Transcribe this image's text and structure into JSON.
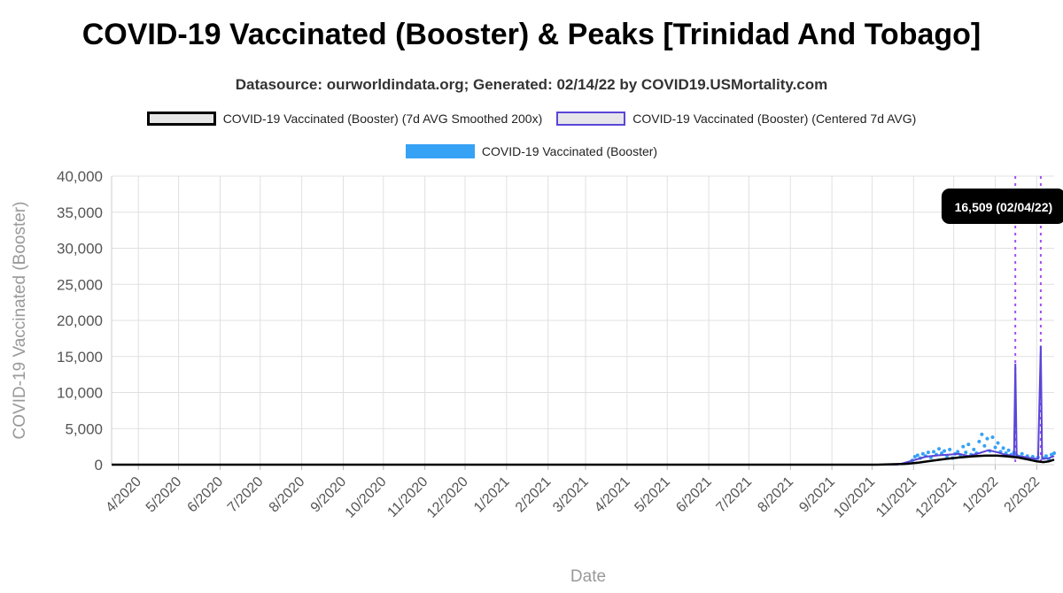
{
  "title": "COVID-19 Vaccinated (Booster) & Peaks [Trinidad And Tobago]",
  "subtitle": "Datasource: ourworldindata.org; Generated: 02/14/22 by COVID19.USMortality.com",
  "legend": [
    {
      "label": "COVID-19 Vaccinated (Booster) (7d AVG Smoothed 200x)",
      "style": "smooth"
    },
    {
      "label": "COVID-19 Vaccinated (Booster) (Centered 7d AVG)",
      "style": "centered"
    },
    {
      "label": "COVID-19 Vaccinated (Booster)",
      "style": "raw"
    }
  ],
  "colors": {
    "smoothed": "#000000",
    "centered": "#5a46d8",
    "raw": "#36a2f5",
    "peak_line": "#a64df0",
    "grid": "#e0e0e0",
    "axis_text": "#555555",
    "axis_title": "#999999"
  },
  "chart_data": {
    "type": "line",
    "xlabel": "Date",
    "ylabel": "COVID-19 Vaccinated (Booster)",
    "ylim": [
      0,
      40000
    ],
    "yticks": [
      "0",
      "5,000",
      "10,000",
      "15,000",
      "20,000",
      "25,000",
      "30,000",
      "35,000",
      "40,000"
    ],
    "xticks": [
      "4/2020",
      "5/2020",
      "6/2020",
      "7/2020",
      "8/2020",
      "9/2020",
      "10/2020",
      "11/2020",
      "12/2020",
      "1/2021",
      "2/2021",
      "3/2021",
      "4/2021",
      "5/2021",
      "6/2021",
      "7/2021",
      "8/2021",
      "9/2021",
      "10/2021",
      "11/2021",
      "12/2021",
      "1/2022",
      "2/2022"
    ],
    "x_range": [
      "2020-03-12",
      "2022-02-14"
    ],
    "grid": true,
    "legend_position": "top",
    "annotation": "16,509 (02/04/22)",
    "peaks": [
      {
        "date": "2022-01-16",
        "value": 14000
      },
      {
        "date": "2022-02-04",
        "value": 16509
      }
    ],
    "series": [
      {
        "name": "COVID-19 Vaccinated (Booster) (7d AVG Smoothed 200x)",
        "points": [
          [
            "2020-03-12",
            0
          ],
          [
            "2021-10-05",
            0
          ],
          [
            "2021-10-25",
            100
          ],
          [
            "2021-11-05",
            300
          ],
          [
            "2021-11-15",
            550
          ],
          [
            "2021-11-25",
            800
          ],
          [
            "2021-12-05",
            1000
          ],
          [
            "2021-12-15",
            1150
          ],
          [
            "2021-12-25",
            1250
          ],
          [
            "2022-01-02",
            1250
          ],
          [
            "2022-01-10",
            1150
          ],
          [
            "2022-01-18",
            1000
          ],
          [
            "2022-01-26",
            700
          ],
          [
            "2022-02-01",
            450
          ],
          [
            "2022-02-06",
            350
          ],
          [
            "2022-02-10",
            450
          ],
          [
            "2022-02-14",
            700
          ]
        ]
      },
      {
        "name": "COVID-19 Vaccinated (Booster) (Centered 7d AVG)",
        "points": [
          [
            "2020-03-12",
            0
          ],
          [
            "2021-10-20",
            0
          ],
          [
            "2021-11-01",
            600
          ],
          [
            "2021-11-10",
            1100
          ],
          [
            "2021-11-20",
            1300
          ],
          [
            "2021-11-28",
            1400
          ],
          [
            "2021-12-05",
            1500
          ],
          [
            "2021-12-12",
            1200
          ],
          [
            "2021-12-20",
            1600
          ],
          [
            "2021-12-27",
            2000
          ],
          [
            "2022-01-03",
            1700
          ],
          [
            "2022-01-08",
            1400
          ],
          [
            "2022-01-12",
            1300
          ],
          [
            "2022-01-15",
            1200
          ],
          [
            "2022-01-16",
            14000
          ],
          [
            "2022-01-17",
            1200
          ],
          [
            "2022-01-22",
            1100
          ],
          [
            "2022-01-28",
            900
          ],
          [
            "2022-02-02",
            800
          ],
          [
            "2022-02-04",
            16509
          ],
          [
            "2022-02-05",
            800
          ],
          [
            "2022-02-10",
            900
          ],
          [
            "2022-02-14",
            1200
          ]
        ]
      },
      {
        "name": "COVID-19 Vaccinated (Booster)",
        "points": [
          [
            "2021-10-28",
            200
          ],
          [
            "2021-10-31",
            600
          ],
          [
            "2021-11-02",
            1100
          ],
          [
            "2021-11-04",
            1300
          ],
          [
            "2021-11-06",
            900
          ],
          [
            "2021-11-08",
            1500
          ],
          [
            "2021-11-10",
            1200
          ],
          [
            "2021-11-12",
            1700
          ],
          [
            "2021-11-14",
            1000
          ],
          [
            "2021-11-16",
            1800
          ],
          [
            "2021-11-18",
            1400
          ],
          [
            "2021-11-20",
            2200
          ],
          [
            "2021-11-22",
            1600
          ],
          [
            "2021-11-24",
            1900
          ],
          [
            "2021-11-26",
            1200
          ],
          [
            "2021-11-28",
            2100
          ],
          [
            "2021-11-30",
            900
          ],
          [
            "2021-12-02",
            1500
          ],
          [
            "2021-12-04",
            1800
          ],
          [
            "2021-12-06",
            1300
          ],
          [
            "2021-12-08",
            2500
          ],
          [
            "2021-12-10",
            1700
          ],
          [
            "2021-12-12",
            2800
          ],
          [
            "2021-12-14",
            1400
          ],
          [
            "2021-12-16",
            2100
          ],
          [
            "2021-12-18",
            1600
          ],
          [
            "2021-12-20",
            3200
          ],
          [
            "2021-12-22",
            4200
          ],
          [
            "2021-12-24",
            2600
          ],
          [
            "2021-12-26",
            3600
          ],
          [
            "2021-12-28",
            1900
          ],
          [
            "2021-12-30",
            3800
          ],
          [
            "2022-01-01",
            2400
          ],
          [
            "2022-01-03",
            3000
          ],
          [
            "2022-01-05",
            1800
          ],
          [
            "2022-01-07",
            2300
          ],
          [
            "2022-01-09",
            1600
          ],
          [
            "2022-01-11",
            2000
          ],
          [
            "2022-01-13",
            1400
          ],
          [
            "2022-01-15",
            1700
          ],
          [
            "2022-01-17",
            1300
          ],
          [
            "2022-01-19",
            1100
          ],
          [
            "2022-01-21",
            1500
          ],
          [
            "2022-01-23",
            900
          ],
          [
            "2022-01-25",
            1200
          ],
          [
            "2022-01-27",
            800
          ],
          [
            "2022-01-29",
            1100
          ],
          [
            "2022-01-31",
            700
          ],
          [
            "2022-02-02",
            1000
          ],
          [
            "2022-02-06",
            900
          ],
          [
            "2022-02-08",
            1200
          ],
          [
            "2022-02-10",
            800
          ],
          [
            "2022-02-12",
            1400
          ],
          [
            "2022-02-14",
            1600
          ]
        ]
      }
    ]
  }
}
